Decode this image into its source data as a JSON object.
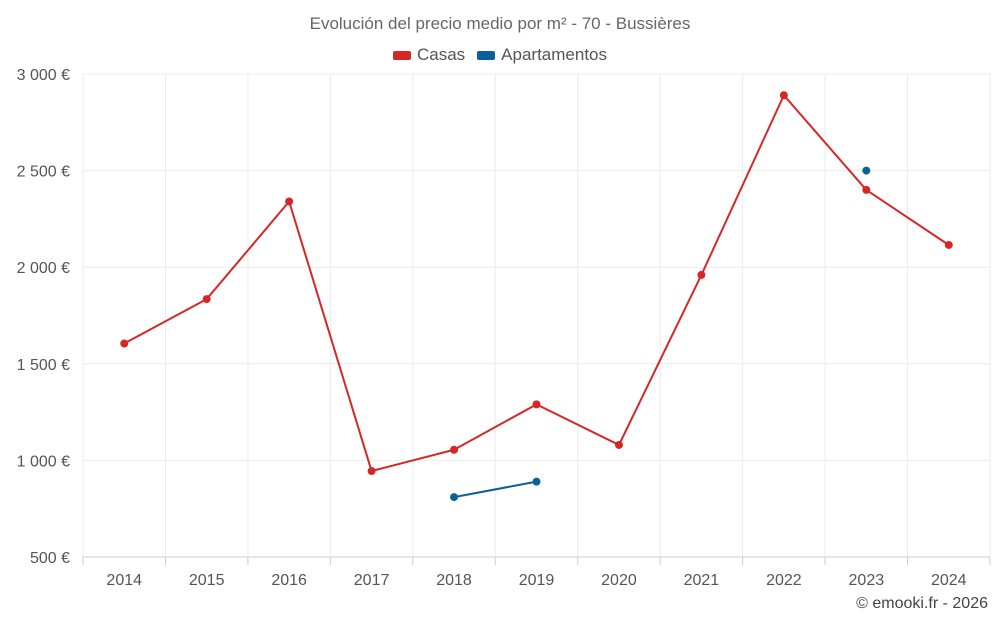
{
  "chart_data": {
    "type": "line",
    "title": "Evolución del precio medio por m² - 70 - Bussières",
    "categories": [
      "2014",
      "2015",
      "2016",
      "2017",
      "2018",
      "2019",
      "2020",
      "2021",
      "2022",
      "2023",
      "2024"
    ],
    "series": [
      {
        "name": "Casas",
        "color": "#d62728",
        "values": [
          1605,
          1835,
          2340,
          945,
          1055,
          1290,
          1080,
          1960,
          2890,
          2400,
          2115
        ]
      },
      {
        "name": "Apartamentos",
        "color": "#0b6197",
        "values": [
          null,
          null,
          null,
          null,
          810,
          890,
          null,
          null,
          null,
          2500,
          null
        ]
      }
    ],
    "y_ticks": [
      "500 €",
      "1 000 €",
      "1 500 €",
      "2 000 €",
      "2 500 €",
      "3 000 €"
    ],
    "y_tick_values": [
      500,
      1000,
      1500,
      2000,
      2500,
      3000
    ],
    "ylim": [
      500,
      3000
    ],
    "grid": true,
    "legend_position": "top-center"
  },
  "credit": "© emooki.fr - 2026"
}
